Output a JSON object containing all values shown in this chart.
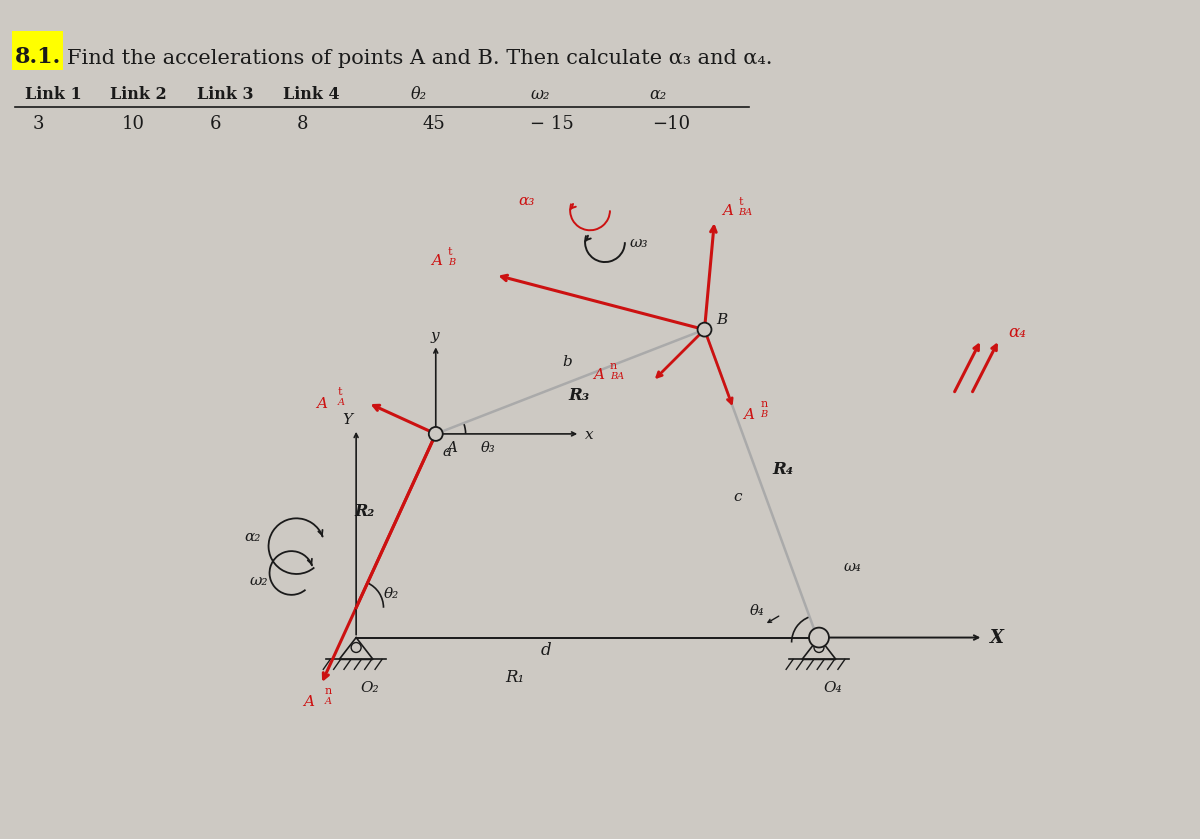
{
  "title_highlight": "8.1.",
  "title_rest": "Find the accelerations of points A and B. Then calculate α₃ and α₄.",
  "table_headers": [
    "Link 1",
    "Link 2",
    "Link 3",
    "Link 4",
    "θ₂",
    "ω₂",
    "α₂"
  ],
  "table_values": [
    "3",
    "10",
    "6",
    "8",
    "45",
    "− 15",
    "−10"
  ],
  "bg_color": "#cdc9c3",
  "red_color": "#cc1111",
  "dark_color": "#1a1a1a",
  "highlight_yellow": "#ffff00",
  "O2": [
    3.55,
    2.3
  ],
  "A": [
    4.35,
    4.05
  ],
  "B": [
    7.05,
    5.1
  ],
  "O4": [
    8.2,
    1.95
  ]
}
